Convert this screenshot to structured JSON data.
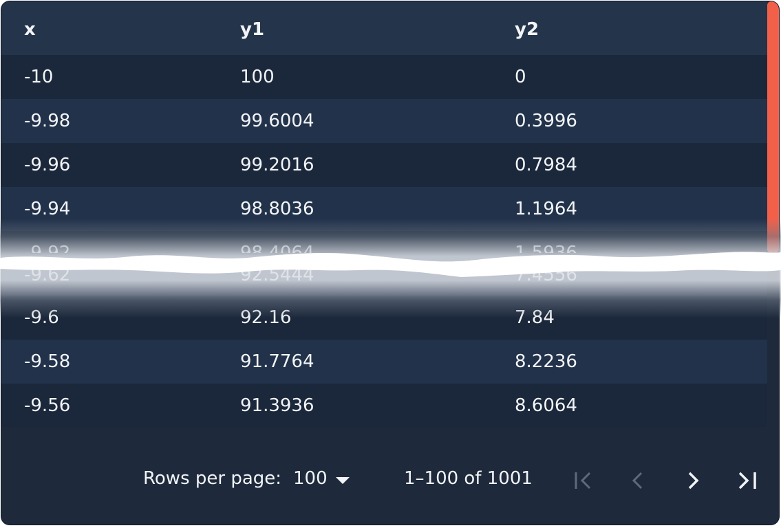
{
  "table": {
    "columns": [
      "x",
      "y1",
      "y2"
    ],
    "rows_top": [
      [
        "-10",
        "100",
        "0"
      ],
      [
        "-9.98",
        "99.6004",
        "0.3996"
      ],
      [
        "-9.96",
        "99.2016",
        "0.7984"
      ],
      [
        "-9.94",
        "98.8036",
        "1.1964"
      ],
      [
        "-9.92",
        "98.4064",
        "1.5936"
      ]
    ],
    "rows_partial": [
      "-9.62",
      "92.5444",
      "7.4556"
    ],
    "rows_bottom": [
      [
        "-9.6",
        "92.16",
        "7.84"
      ],
      [
        "-9.58",
        "91.7764",
        "8.2236"
      ],
      [
        "-9.56",
        "91.3936",
        "8.6064"
      ]
    ]
  },
  "footer": {
    "rows_per_page_label": "Rows per page:",
    "rows_per_page_value": "100",
    "range_text": "1–100 of 1001"
  },
  "icons": {
    "first": "first-page-icon",
    "prev": "chevron-left-icon",
    "next": "chevron-right-icon",
    "last": "last-page-icon",
    "dropdown": "caret-down-icon"
  },
  "colors": {
    "background": "#1e2a3c",
    "header": "#24344a",
    "scroll_thumb": "#f2604a",
    "text": "#f2f4f7",
    "disabled": "#5d6a7d"
  }
}
